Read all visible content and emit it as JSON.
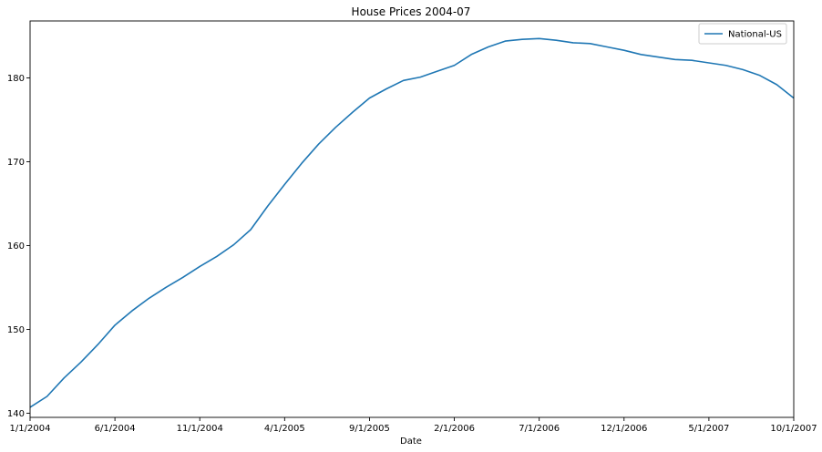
{
  "chart_data": {
    "type": "line",
    "title": "House Prices 2004-07",
    "xlabel": "Date",
    "ylabel": "",
    "x": [
      "1/1/2004",
      "2/1/2004",
      "3/1/2004",
      "4/1/2004",
      "5/1/2004",
      "6/1/2004",
      "7/1/2004",
      "8/1/2004",
      "9/1/2004",
      "10/1/2004",
      "11/1/2004",
      "12/1/2004",
      "1/1/2005",
      "2/1/2005",
      "3/1/2005",
      "4/1/2005",
      "5/1/2005",
      "6/1/2005",
      "7/1/2005",
      "8/1/2005",
      "9/1/2005",
      "10/1/2005",
      "11/1/2005",
      "12/1/2005",
      "1/1/2006",
      "2/1/2006",
      "3/1/2006",
      "4/1/2006",
      "5/1/2006",
      "6/1/2006",
      "7/1/2006",
      "8/1/2006",
      "9/1/2006",
      "10/1/2006",
      "11/1/2006",
      "12/1/2006",
      "1/1/2007",
      "2/1/2007",
      "3/1/2007",
      "4/1/2007",
      "5/1/2007",
      "6/1/2007",
      "7/1/2007",
      "8/1/2007",
      "9/1/2007",
      "10/1/2007"
    ],
    "series": [
      {
        "name": "National-US",
        "color": "#1f77b4",
        "values": [
          140.7,
          142.0,
          144.2,
          146.1,
          148.2,
          150.5,
          152.2,
          153.7,
          155.0,
          156.2,
          157.5,
          158.7,
          160.1,
          161.9,
          164.7,
          167.3,
          169.8,
          172.1,
          174.1,
          175.9,
          177.6,
          178.7,
          179.7,
          180.1,
          180.8,
          181.5,
          182.8,
          183.7,
          184.4,
          184.6,
          184.7,
          184.5,
          184.2,
          184.1,
          183.7,
          183.3,
          182.8,
          182.5,
          182.2,
          182.1,
          181.8,
          181.5,
          181.0,
          180.3,
          179.2,
          177.6
        ]
      }
    ],
    "xticks": [
      "1/1/2004",
      "6/1/2004",
      "11/1/2004",
      "4/1/2005",
      "9/1/2005",
      "2/1/2006",
      "7/1/2006",
      "12/1/2006",
      "5/1/2007",
      "10/1/2007"
    ],
    "yticks": [
      140,
      150,
      160,
      170,
      180
    ],
    "ylim": [
      139.5,
      186.8
    ],
    "grid": false,
    "legend_position": "top-right"
  }
}
